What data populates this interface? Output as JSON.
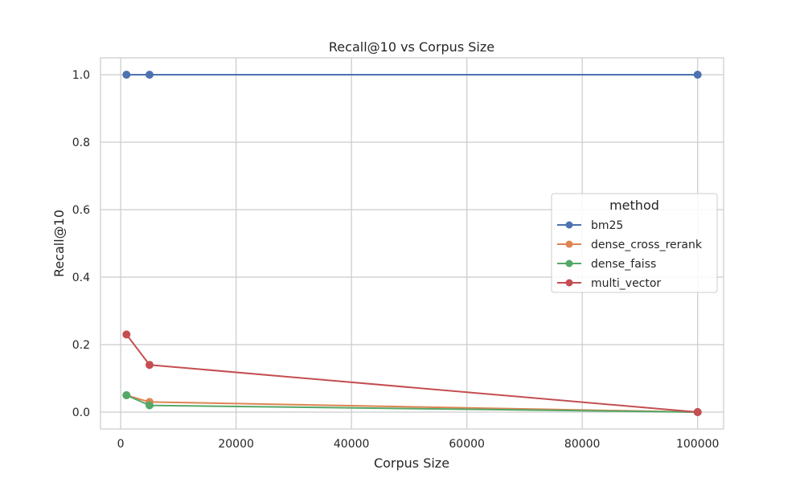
{
  "chart_data": {
    "type": "line",
    "title": "Recall@10 vs Corpus Size",
    "xlabel": "Corpus Size",
    "ylabel": "Recall@10",
    "xlim": [
      -3500,
      104500
    ],
    "ylim": [
      -0.05,
      1.05
    ],
    "xticks": [
      0,
      20000,
      40000,
      60000,
      80000,
      100000
    ],
    "yticks": [
      0.0,
      0.2,
      0.4,
      0.6,
      0.8,
      1.0
    ],
    "xtick_labels": [
      "0",
      "20000",
      "40000",
      "60000",
      "80000",
      "100000"
    ],
    "ytick_labels": [
      "0.0",
      "0.2",
      "0.4",
      "0.6",
      "0.8",
      "1.0"
    ],
    "grid": true,
    "legend": {
      "title": "method",
      "placement": "center-right"
    },
    "series": [
      {
        "name": "bm25",
        "color": "#4c72b0",
        "x": [
          1000,
          5000,
          100000
        ],
        "y": [
          1.0,
          1.0,
          1.0
        ]
      },
      {
        "name": "dense_cross_rerank",
        "color": "#dd8452",
        "x": [
          1000,
          5000,
          100000
        ],
        "y": [
          0.05,
          0.03,
          0.0
        ]
      },
      {
        "name": "dense_faiss",
        "color": "#55a868",
        "x": [
          1000,
          5000,
          100000
        ],
        "y": [
          0.05,
          0.02,
          0.0
        ]
      },
      {
        "name": "multi_vector",
        "color": "#c44e52",
        "x": [
          1000,
          5000,
          100000
        ],
        "y": [
          0.23,
          0.14,
          0.0
        ]
      }
    ]
  }
}
